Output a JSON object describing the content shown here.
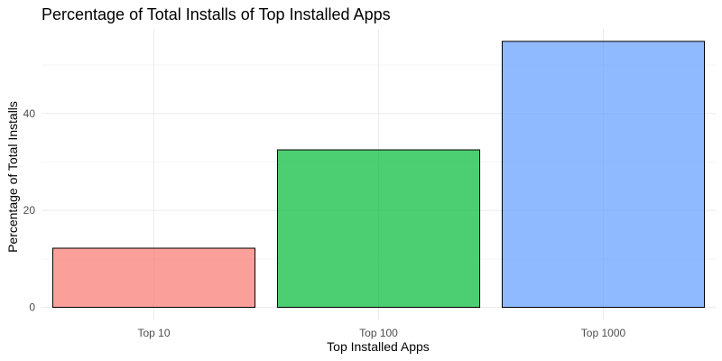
{
  "chart_data": {
    "type": "bar",
    "title": "Percentage of Total Installs of Top Installed Apps",
    "xlabel": "Top Installed Apps",
    "ylabel": "Percentage of Total Installs",
    "categories": [
      "Top 10",
      "Top 100",
      "Top 1000"
    ],
    "values": [
      12.2,
      32.5,
      54.9
    ],
    "colors": [
      "#F8766D",
      "#00BA38",
      "#619CFF"
    ],
    "bar_opacity": 0.7,
    "ylim": [
      0,
      57.6
    ],
    "yticks": [
      0,
      20,
      40
    ],
    "grid": true,
    "legend": "none"
  }
}
